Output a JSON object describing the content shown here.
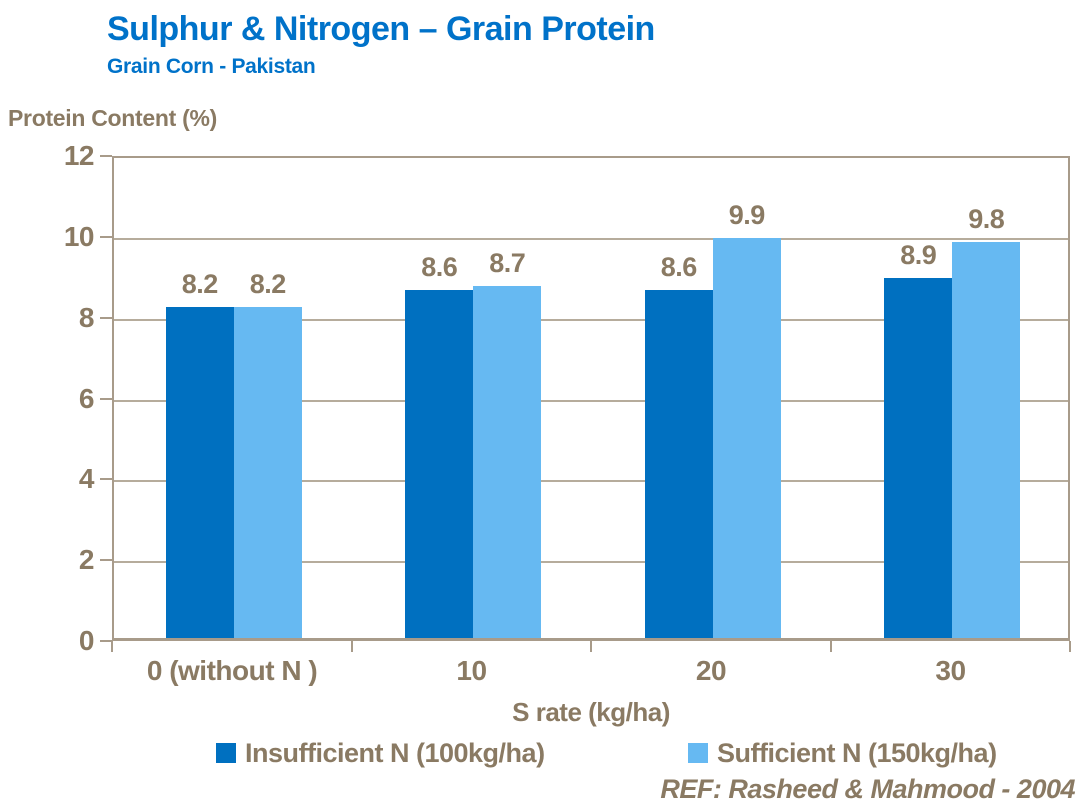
{
  "header": {
    "title": "Sulphur & Nitrogen – Grain Protein",
    "subtitle": "Grain Corn - Pakistan"
  },
  "footer": {
    "ref": "REF: Rasheed & Mahmood - 2004"
  },
  "colors": {
    "title_blue": "#0072c9",
    "series1_dark_blue": "#0070c0",
    "series2_light_blue": "#66b9f2",
    "axis_text_brown": "#8a7a63",
    "gridline_tan": "#b6ac9c",
    "axis_border_tan": "#a89b8a"
  },
  "chart_data": {
    "type": "bar",
    "title": "Sulphur & Nitrogen – Grain Protein",
    "subtitle": "Grain Corn - Pakistan",
    "xlabel": "S rate (kg/ha)",
    "ylabel": "Protein Content (%)",
    "ylim": [
      0,
      12
    ],
    "yticks": [
      0,
      2,
      4,
      6,
      8,
      10,
      12
    ],
    "grid": true,
    "data_labels": true,
    "legend_position": "bottom",
    "categories": [
      "0 (without N )",
      "10",
      "20",
      "30"
    ],
    "series": [
      {
        "name": "Insufficient N (100kg/ha)",
        "color": "#0070c0",
        "values": [
          8.2,
          8.6,
          8.6,
          8.9
        ]
      },
      {
        "name": "Sufficient N (150kg/ha)",
        "color": "#66b9f2",
        "values": [
          8.2,
          8.7,
          9.9,
          9.8
        ]
      }
    ]
  }
}
